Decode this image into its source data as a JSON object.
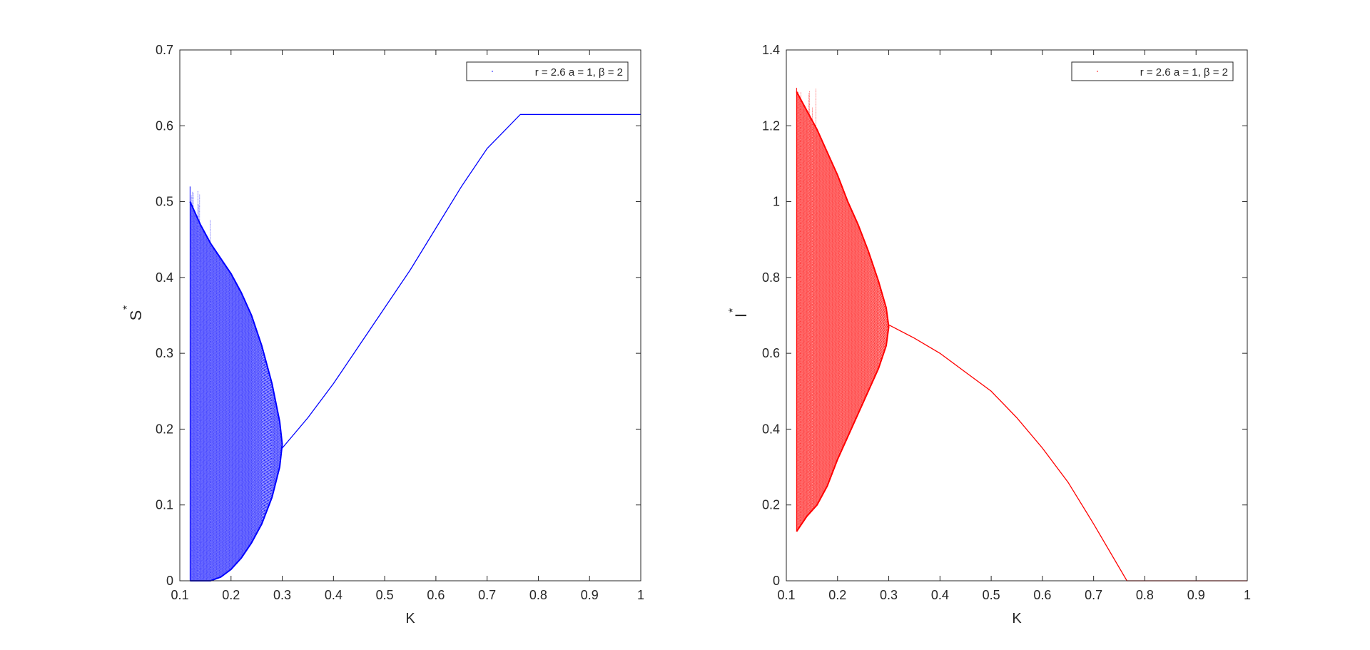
{
  "chart_data": [
    {
      "type": "scatter",
      "description": "bifurcation diagram of S* versus K",
      "xlabel": "K",
      "ylabel": "S",
      "ylabel_superscript": "*",
      "xlim": [
        0.1,
        1
      ],
      "ylim": [
        0,
        0.7
      ],
      "xticks": [
        "0.1",
        "0.2",
        "0.3",
        "0.4",
        "0.5",
        "0.6",
        "0.7",
        "0.8",
        "0.9",
        "1"
      ],
      "yticks": [
        "0",
        "0.1",
        "0.2",
        "0.3",
        "0.4",
        "0.5",
        "0.6",
        "0.7"
      ],
      "legend": {
        "label": "r = 2.6 a = 1, β = 2",
        "placement": "top-right"
      },
      "color": "#0000ff",
      "chaotic_region": {
        "k_start": 0.12,
        "k_end": 0.3,
        "spike_max": 0.52,
        "upper_envelope": [
          [
            0.12,
            0.5
          ],
          [
            0.14,
            0.47
          ],
          [
            0.16,
            0.445
          ],
          [
            0.18,
            0.425
          ],
          [
            0.2,
            0.405
          ],
          [
            0.22,
            0.38
          ],
          [
            0.24,
            0.35
          ],
          [
            0.26,
            0.31
          ],
          [
            0.28,
            0.26
          ],
          [
            0.295,
            0.21
          ],
          [
            0.3,
            0.18
          ]
        ],
        "lower_envelope": [
          [
            0.12,
            0.0
          ],
          [
            0.14,
            0.0
          ],
          [
            0.16,
            0.0
          ],
          [
            0.18,
            0.005
          ],
          [
            0.2,
            0.015
          ],
          [
            0.22,
            0.03
          ],
          [
            0.24,
            0.05
          ],
          [
            0.26,
            0.075
          ],
          [
            0.28,
            0.11
          ],
          [
            0.295,
            0.15
          ],
          [
            0.3,
            0.18
          ]
        ]
      },
      "fixed_point_curve": [
        [
          0.3,
          0.175
        ],
        [
          0.35,
          0.215
        ],
        [
          0.4,
          0.26
        ],
        [
          0.45,
          0.31
        ],
        [
          0.5,
          0.36
        ],
        [
          0.55,
          0.41
        ],
        [
          0.6,
          0.465
        ],
        [
          0.65,
          0.52
        ],
        [
          0.7,
          0.57
        ],
        [
          0.765,
          0.615
        ],
        [
          0.8,
          0.615
        ],
        [
          0.9,
          0.615
        ],
        [
          1.0,
          0.615
        ]
      ]
    },
    {
      "type": "scatter",
      "description": "bifurcation diagram of I* versus K",
      "xlabel": "K",
      "ylabel": "I",
      "ylabel_superscript": "*",
      "xlim": [
        0.1,
        1
      ],
      "ylim": [
        0,
        1.4
      ],
      "xticks": [
        "0.1",
        "0.2",
        "0.3",
        "0.4",
        "0.5",
        "0.6",
        "0.7",
        "0.8",
        "0.9",
        "1"
      ],
      "yticks": [
        "0",
        "0.2",
        "0.4",
        "0.6",
        "0.8",
        "1",
        "1.2",
        "1.4"
      ],
      "legend": {
        "label": "r = 2.6 a = 1, β = 2",
        "placement": "top-right"
      },
      "color": "#ff0000",
      "chaotic_region": {
        "k_start": 0.12,
        "k_end": 0.3,
        "spike_max": 1.3,
        "upper_envelope": [
          [
            0.12,
            1.29
          ],
          [
            0.14,
            1.24
          ],
          [
            0.16,
            1.19
          ],
          [
            0.18,
            1.13
          ],
          [
            0.2,
            1.07
          ],
          [
            0.22,
            1.0
          ],
          [
            0.24,
            0.94
          ],
          [
            0.26,
            0.87
          ],
          [
            0.28,
            0.79
          ],
          [
            0.295,
            0.72
          ],
          [
            0.3,
            0.67
          ]
        ],
        "lower_envelope": [
          [
            0.12,
            0.13
          ],
          [
            0.14,
            0.17
          ],
          [
            0.16,
            0.2
          ],
          [
            0.18,
            0.25
          ],
          [
            0.2,
            0.32
          ],
          [
            0.22,
            0.38
          ],
          [
            0.24,
            0.44
          ],
          [
            0.26,
            0.5
          ],
          [
            0.28,
            0.56
          ],
          [
            0.295,
            0.62
          ],
          [
            0.3,
            0.67
          ]
        ]
      },
      "fixed_point_curve": [
        [
          0.3,
          0.675
        ],
        [
          0.35,
          0.64
        ],
        [
          0.4,
          0.6
        ],
        [
          0.45,
          0.55
        ],
        [
          0.5,
          0.5
        ],
        [
          0.55,
          0.43
        ],
        [
          0.6,
          0.35
        ],
        [
          0.65,
          0.26
        ],
        [
          0.7,
          0.15
        ],
        [
          0.765,
          0.0
        ],
        [
          0.8,
          0.0
        ],
        [
          0.9,
          0.0
        ],
        [
          1.0,
          0.0
        ]
      ]
    }
  ]
}
